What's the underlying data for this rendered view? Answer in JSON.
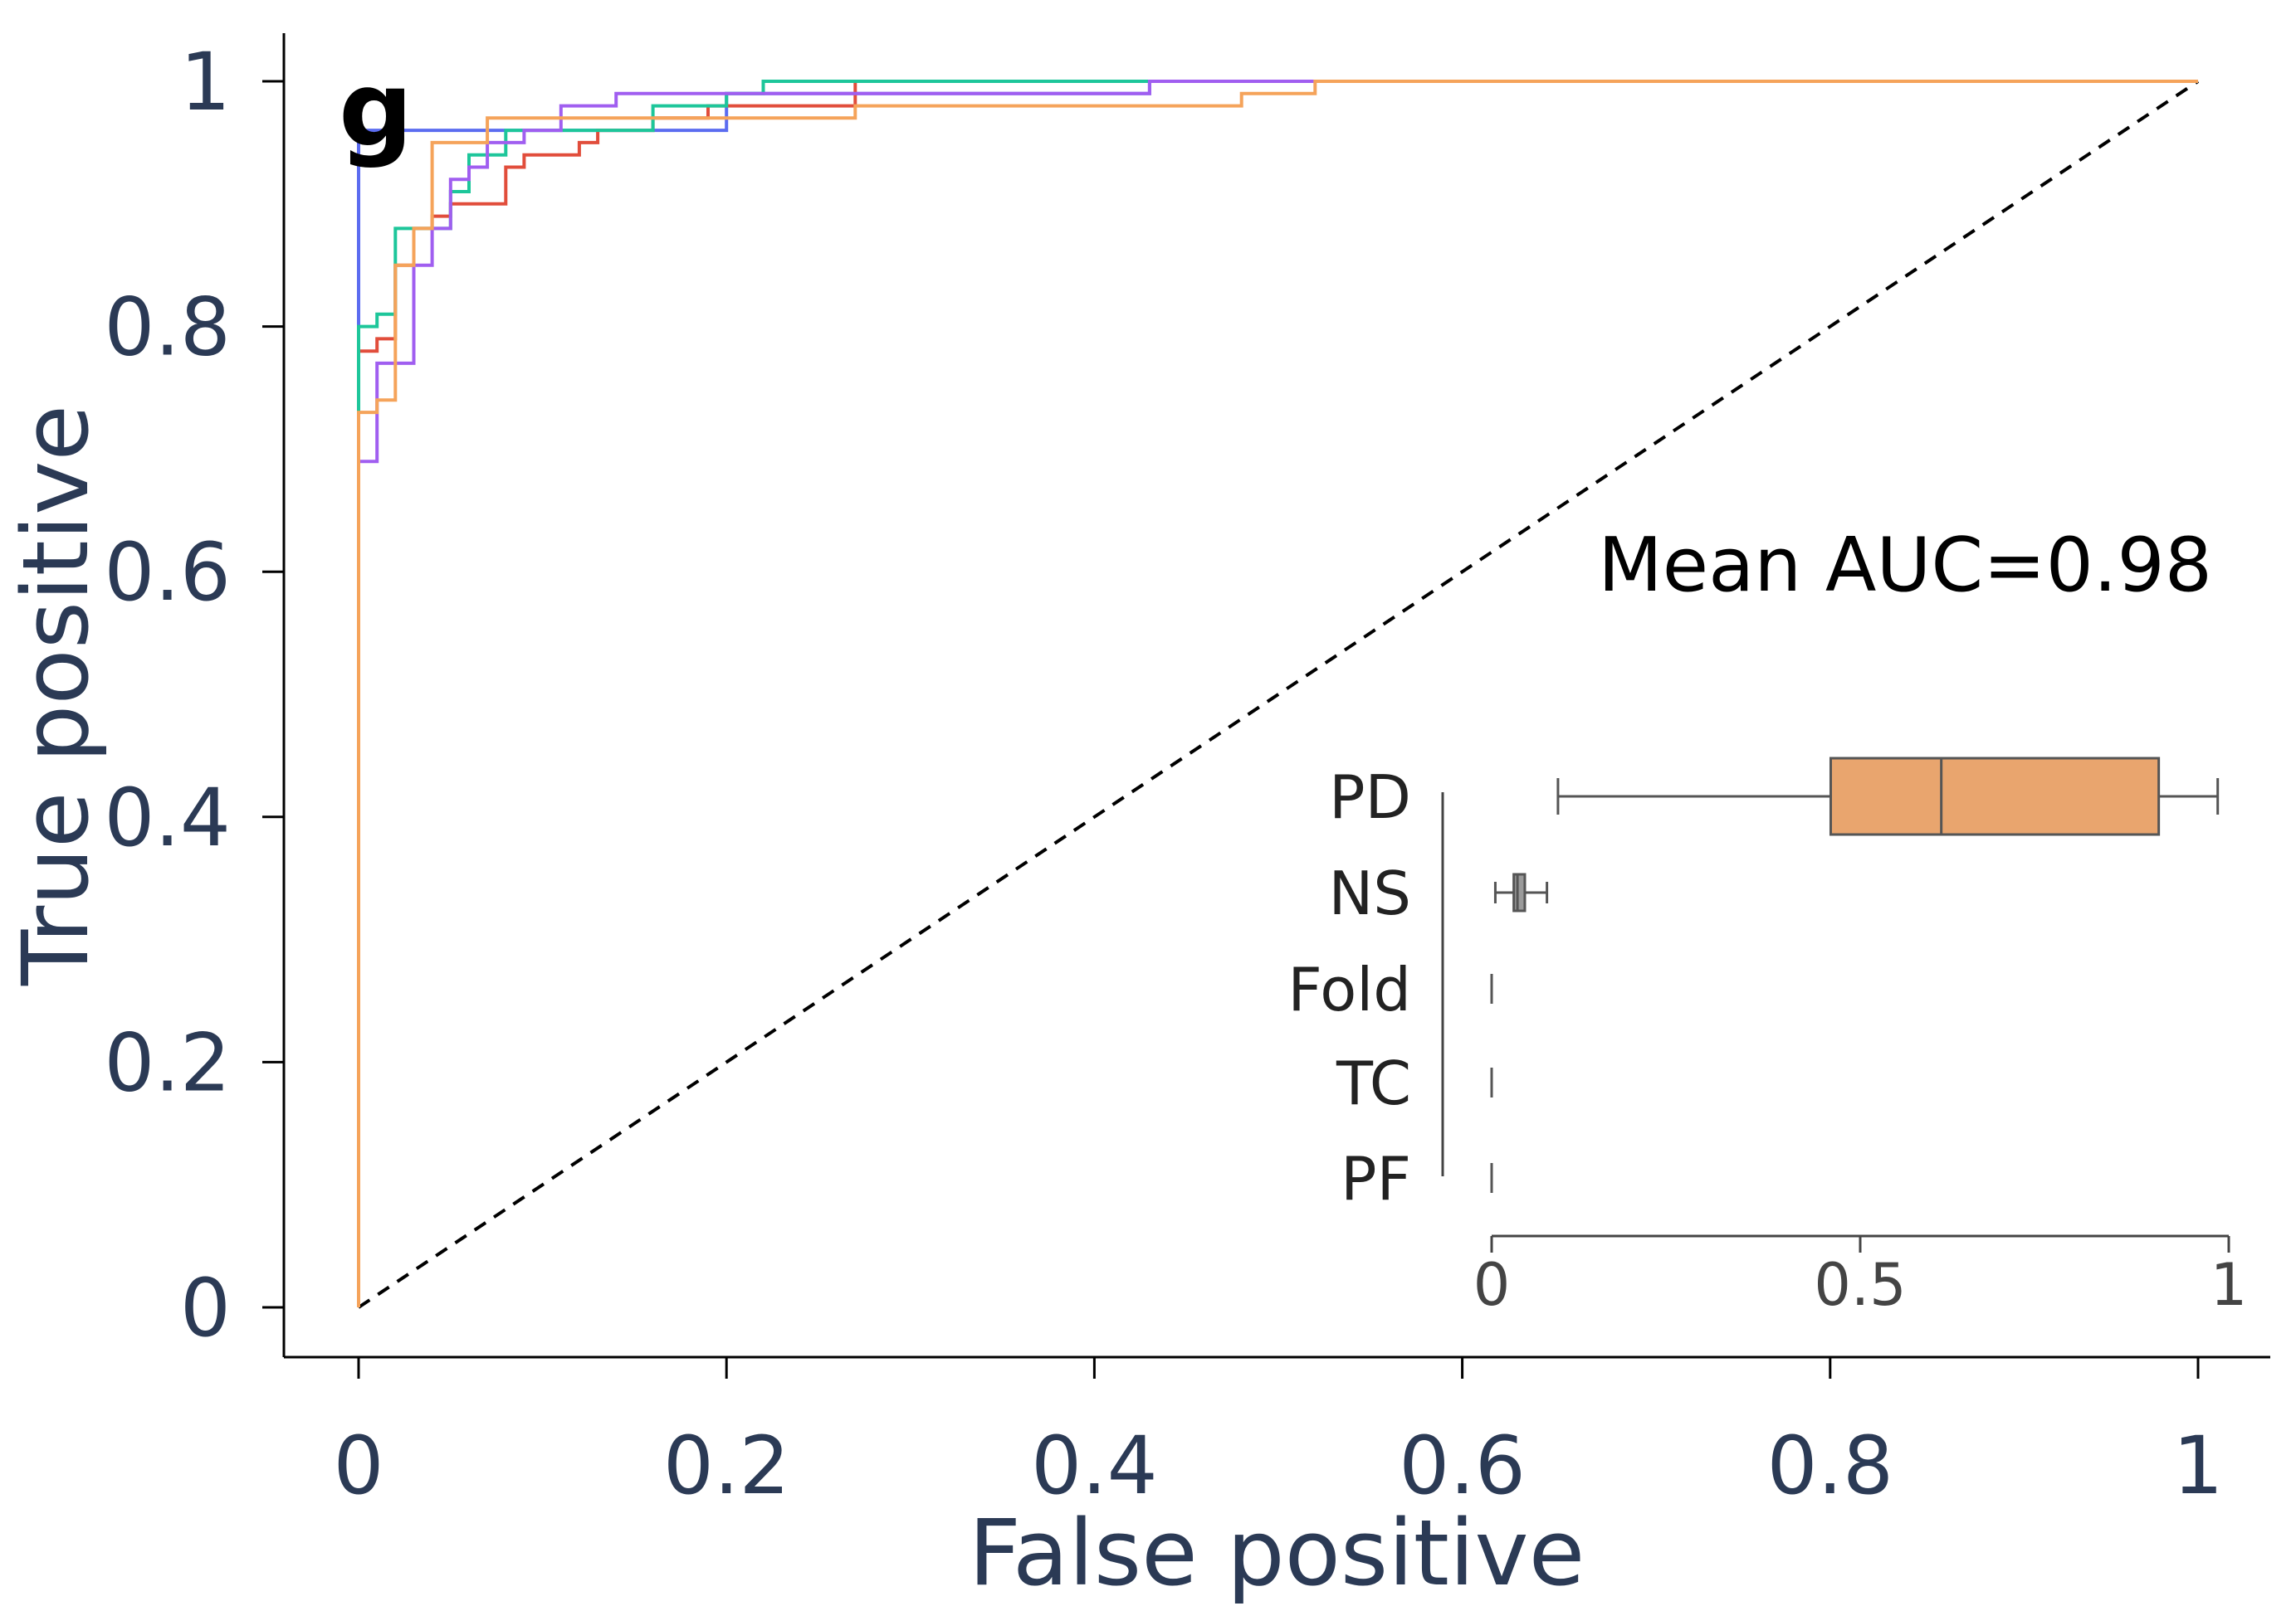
{
  "panel_label": "g",
  "annotation": "Mean AUC=0.98",
  "colors": {
    "axis_text": "#2b3a55",
    "axis_line": "#000000",
    "inset_text": "#222222",
    "inset_axis": "#444444",
    "diagonal": "#000000"
  },
  "chart_data": [
    {
      "type": "line",
      "title": "",
      "xlabel": "False positive",
      "ylabel": "True positive",
      "xlim": [
        0,
        1
      ],
      "ylim": [
        0,
        1
      ],
      "xticks": [
        0,
        0.2,
        0.4,
        0.6,
        0.8,
        1
      ],
      "xtick_labels": [
        "0",
        "0.2",
        "0.4",
        "0.6",
        "0.8",
        "1"
      ],
      "yticks": [
        0,
        0.2,
        0.4,
        0.6,
        0.8,
        1
      ],
      "ytick_labels": [
        "0",
        "0.2",
        "0.4",
        "0.6",
        "0.8",
        "1"
      ],
      "grid": false,
      "reference_line": {
        "from": [
          0,
          0
        ],
        "to": [
          1,
          1
        ],
        "style": "dashed"
      },
      "series": [
        {
          "color": "#5b6cf0",
          "x": [
            0,
            0,
            0,
            0.2,
            0.2,
            0.43,
            0.43,
            0.52,
            1
          ],
          "y": [
            0,
            0.93,
            0.96,
            0.96,
            0.99,
            0.99,
            1,
            1,
            1
          ]
        },
        {
          "color": "#e14d3b",
          "x": [
            0,
            0,
            0.01,
            0.01,
            0.02,
            0.02,
            0.03,
            0.03,
            0.04,
            0.04,
            0.05,
            0.05,
            0.08,
            0.08,
            0.09,
            0.09,
            0.12,
            0.12,
            0.13,
            0.13,
            0.16,
            0.16,
            0.19,
            0.19,
            0.27,
            0.27,
            1
          ],
          "y": [
            0,
            0.78,
            0.78,
            0.79,
            0.79,
            0.85,
            0.85,
            0.88,
            0.88,
            0.89,
            0.89,
            0.9,
            0.9,
            0.93,
            0.93,
            0.94,
            0.94,
            0.95,
            0.95,
            0.96,
            0.96,
            0.97,
            0.97,
            0.98,
            0.98,
            1.0,
            1.0
          ]
        },
        {
          "color": "#1dc69a",
          "x": [
            0,
            0,
            0.01,
            0.01,
            0.02,
            0.02,
            0.05,
            0.05,
            0.06,
            0.06,
            0.08,
            0.08,
            0.16,
            0.16,
            0.2,
            0.2,
            0.22,
            0.22,
            1
          ],
          "y": [
            0,
            0.8,
            0.8,
            0.81,
            0.81,
            0.88,
            0.88,
            0.91,
            0.91,
            0.94,
            0.94,
            0.96,
            0.96,
            0.98,
            0.98,
            0.99,
            0.99,
            1.0,
            1.0
          ]
        },
        {
          "color": "#a05ef0",
          "x": [
            0,
            0,
            0.01,
            0.01,
            0.03,
            0.03,
            0.04,
            0.04,
            0.05,
            0.05,
            0.06,
            0.06,
            0.07,
            0.07,
            0.09,
            0.09,
            0.11,
            0.11,
            0.14,
            0.14,
            0.43,
            0.43,
            1
          ],
          "y": [
            0,
            0.69,
            0.69,
            0.77,
            0.77,
            0.85,
            0.85,
            0.88,
            0.88,
            0.92,
            0.92,
            0.93,
            0.93,
            0.95,
            0.95,
            0.96,
            0.96,
            0.98,
            0.98,
            0.99,
            0.99,
            1.0,
            1.0
          ]
        },
        {
          "color": "#f5a35a",
          "x": [
            0,
            0,
            0.01,
            0.01,
            0.02,
            0.02,
            0.03,
            0.03,
            0.04,
            0.04,
            0.07,
            0.07,
            0.27,
            0.27,
            0.48,
            0.48,
            0.52,
            0.52,
            1
          ],
          "y": [
            0,
            0.73,
            0.73,
            0.74,
            0.74,
            0.85,
            0.85,
            0.88,
            0.88,
            0.95,
            0.95,
            0.97,
            0.97,
            0.98,
            0.98,
            0.99,
            0.99,
            1.0,
            1.0
          ]
        }
      ]
    },
    {
      "type": "box",
      "inset": true,
      "title": "",
      "xlabel": "",
      "xlim": [
        0,
        1
      ],
      "xticks": [
        0,
        0.5,
        1
      ],
      "xtick_labels": [
        "0",
        "0.5",
        "1"
      ],
      "categories": [
        "PD",
        "NS",
        "Fold",
        "TC",
        "PF"
      ],
      "boxes": [
        {
          "label": "PD",
          "whisker_low": 0.09,
          "q1": 0.46,
          "median": 0.61,
          "q3": 0.905,
          "whisker_high": 0.985,
          "color": "#e9a56e"
        },
        {
          "label": "NS",
          "whisker_low": 0.005,
          "q1": 0.03,
          "median": 0.035,
          "q3": 0.045,
          "whisker_high": 0.075,
          "color": "#9a9a9a"
        },
        {
          "label": "Fold",
          "whisker_low": 0.0,
          "q1": 0.0,
          "median": 0.0,
          "q3": 0.0,
          "whisker_high": 0.0,
          "color": "#9a9a9a"
        },
        {
          "label": "TC",
          "whisker_low": 0.0,
          "q1": 0.0,
          "median": 0.0,
          "q3": 0.0,
          "whisker_high": 0.0,
          "color": "#9a9a9a"
        },
        {
          "label": "PF",
          "whisker_low": 0.0,
          "q1": 0.0,
          "median": 0.0,
          "q3": 0.0,
          "whisker_high": 0.0,
          "color": "#9a9a9a"
        }
      ]
    }
  ]
}
